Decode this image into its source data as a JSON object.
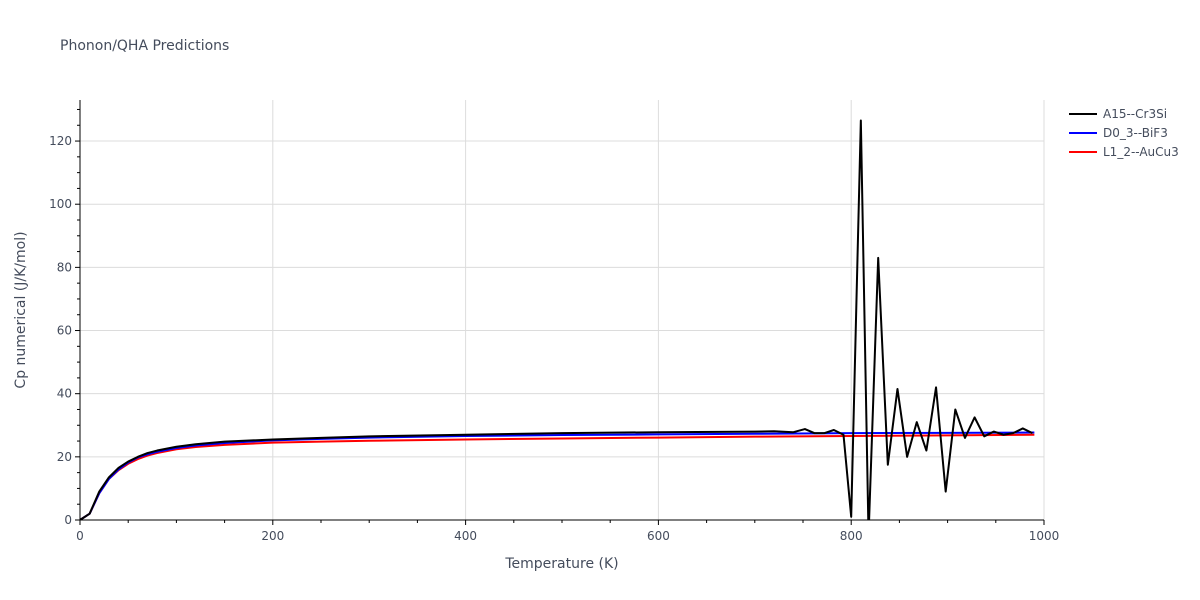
{
  "chart_data": {
    "type": "line",
    "title": "Phonon/QHA Predictions",
    "xlabel": "Temperature (K)",
    "ylabel": "Cp numerical (J/K/mol)",
    "xlim": [
      0,
      1000
    ],
    "ylim": [
      0,
      133
    ],
    "xticks": [
      0,
      200,
      400,
      600,
      800,
      1000
    ],
    "yticks": [
      0,
      20,
      40,
      60,
      80,
      100,
      120
    ],
    "grid": true,
    "legend_position": "top-right",
    "series": [
      {
        "name": "A15--Cr3Si",
        "color": "#000000",
        "x": [
          0,
          10,
          20,
          30,
          40,
          50,
          60,
          70,
          80,
          100,
          120,
          150,
          200,
          250,
          300,
          400,
          500,
          600,
          700,
          720,
          740,
          752,
          762,
          772,
          782,
          792,
          800,
          810,
          818,
          828,
          838,
          848,
          858,
          868,
          878,
          888,
          898,
          908,
          918,
          928,
          938,
          948,
          958,
          968,
          978,
          988
        ],
        "y": [
          0,
          2,
          9,
          13.5,
          16.5,
          18.5,
          20,
          21.2,
          22,
          23.2,
          24,
          24.8,
          25.5,
          26,
          26.5,
          27,
          27.5,
          27.8,
          28,
          28.1,
          27.8,
          28.8,
          27.5,
          27.5,
          28.5,
          27,
          1,
          126.5,
          -5,
          83,
          17.5,
          41.5,
          20,
          31,
          22,
          42,
          9,
          35,
          26,
          32.5,
          26.5,
          28,
          27,
          27.5,
          29,
          27.5
        ]
      },
      {
        "name": "D0_3--BiF3",
        "color": "#0000ff",
        "x": [
          0,
          10,
          20,
          30,
          40,
          50,
          60,
          70,
          80,
          100,
          120,
          150,
          200,
          250,
          300,
          400,
          500,
          600,
          700,
          800,
          900,
          990
        ],
        "y": [
          0,
          2,
          8.5,
          13,
          16,
          18.2,
          19.8,
          20.8,
          21.6,
          22.8,
          23.6,
          24.4,
          25.2,
          25.7,
          26.1,
          26.6,
          26.9,
          27.1,
          27.3,
          27.5,
          27.6,
          27.7
        ]
      },
      {
        "name": "L1_2--AuCu3",
        "color": "#ff0000",
        "x": [
          0,
          10,
          20,
          30,
          40,
          50,
          60,
          70,
          80,
          100,
          120,
          150,
          200,
          250,
          300,
          400,
          500,
          600,
          700,
          800,
          900,
          990
        ],
        "y": [
          0,
          2,
          8.5,
          13,
          15.8,
          17.8,
          19.3,
          20.4,
          21.2,
          22.4,
          23.1,
          23.8,
          24.5,
          24.8,
          25.1,
          25.5,
          25.8,
          26.1,
          26.4,
          26.6,
          26.8,
          27
        ]
      }
    ]
  }
}
